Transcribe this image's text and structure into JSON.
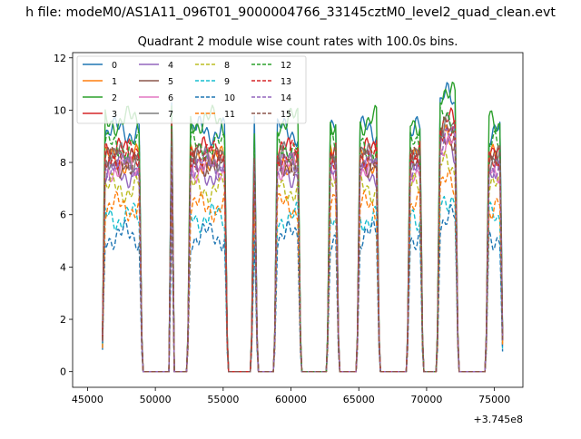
{
  "figure": {
    "suptitle": "h file: modeM0/AS1A11_096T01_9000004766_33145cztM0_level2_quad_clean.evt"
  },
  "chart_data": {
    "type": "line",
    "title": "Quadrant 2 module wise count rates with 100.0s bins.",
    "xlabel": "",
    "ylabel": "",
    "x_offset_label": "+3.745e8",
    "xlim": [
      43900,
      77100
    ],
    "ylim": [
      -0.6,
      12.2
    ],
    "x_ticks": [
      45000,
      50000,
      55000,
      60000,
      65000,
      70000,
      75000
    ],
    "x_tick_labels": [
      "45000",
      "50000",
      "55000",
      "60000",
      "65000",
      "70000",
      "75000"
    ],
    "y_ticks": [
      0,
      2,
      4,
      6,
      8,
      10,
      12
    ],
    "y_tick_labels": [
      "0",
      "2",
      "4",
      "6",
      "8",
      "10",
      "12"
    ],
    "grid": false,
    "legend_position": "top-left",
    "legend_columns": 4,
    "active_intervals": [
      [
        46100,
        49000
      ],
      [
        51100,
        51300
      ],
      [
        52400,
        55300
      ],
      [
        57100,
        57500
      ],
      [
        58800,
        60700
      ],
      [
        62700,
        63500
      ],
      [
        64900,
        66500
      ],
      [
        68600,
        69700
      ],
      [
        70800,
        72300
      ],
      [
        74400,
        75600
      ]
    ],
    "series": [
      {
        "name": "0",
        "color": "#1f77b4",
        "dashed": false,
        "level": 9.2
      },
      {
        "name": "1",
        "color": "#ff7f0e",
        "dashed": false,
        "level": 8.1
      },
      {
        "name": "2",
        "color": "#2ca02c",
        "dashed": false,
        "level": 9.6
      },
      {
        "name": "3",
        "color": "#d62728",
        "dashed": false,
        "level": 8.4
      },
      {
        "name": "4",
        "color": "#9467bd",
        "dashed": false,
        "level": 7.6
      },
      {
        "name": "5",
        "color": "#8c564b",
        "dashed": false,
        "level": 8.0
      },
      {
        "name": "6",
        "color": "#e377c2",
        "dashed": false,
        "level": 7.8
      },
      {
        "name": "7",
        "color": "#7f7f7f",
        "dashed": false,
        "level": 8.2
      },
      {
        "name": "8",
        "color": "#bcbd22",
        "dashed": true,
        "level": 7.0
      },
      {
        "name": "9",
        "color": "#17becf",
        "dashed": true,
        "level": 5.9
      },
      {
        "name": "10",
        "color": "#1f77b4",
        "dashed": true,
        "level": 5.2
      },
      {
        "name": "11",
        "color": "#ff7f0e",
        "dashed": true,
        "level": 6.3
      },
      {
        "name": "12",
        "color": "#2ca02c",
        "dashed": true,
        "level": 8.6
      },
      {
        "name": "13",
        "color": "#d62728",
        "dashed": true,
        "level": 8.3
      },
      {
        "name": "14",
        "color": "#9467bd",
        "dashed": true,
        "level": 7.9
      },
      {
        "name": "15",
        "color": "#8c564b",
        "dashed": true,
        "level": 8.1
      }
    ]
  }
}
